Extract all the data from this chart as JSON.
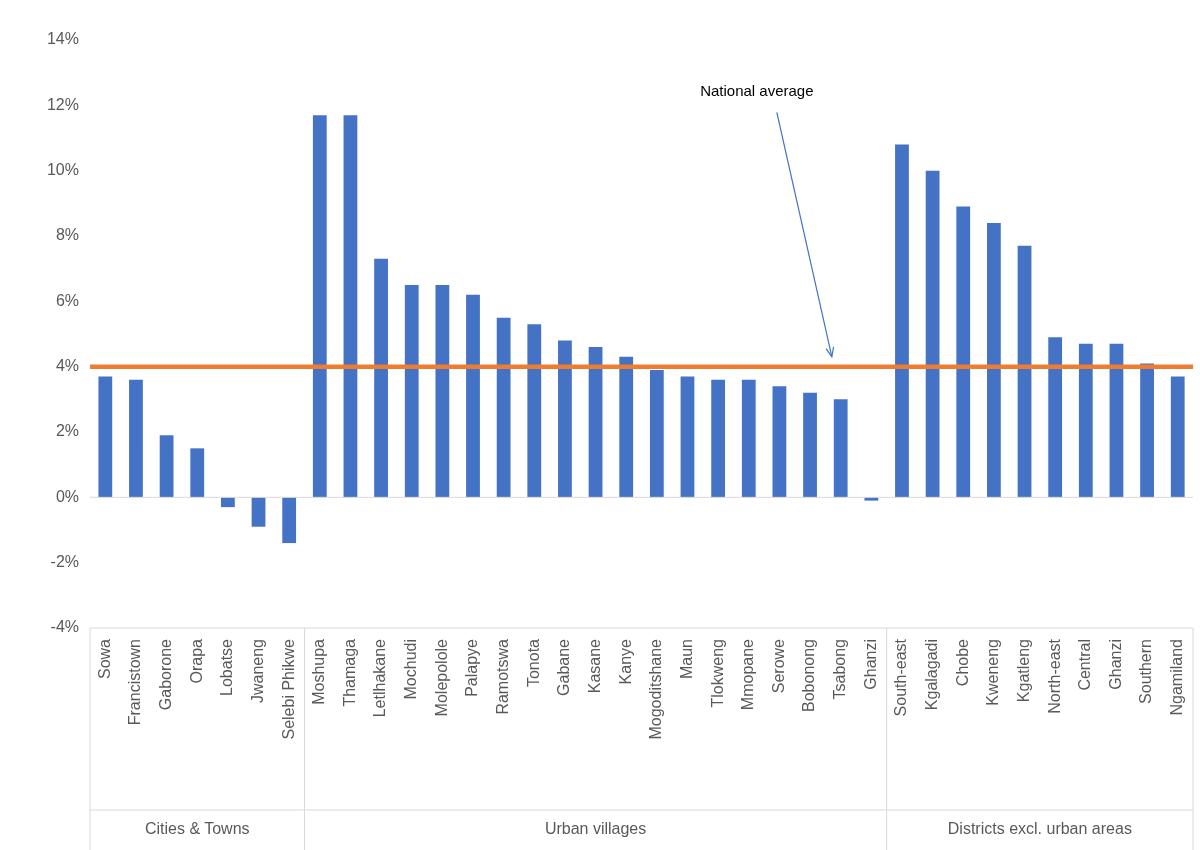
{
  "chart_data": {
    "type": "bar",
    "categories": [
      "Sowa",
      "Francistown",
      "Gaborone",
      "Orapa",
      "Lobatse",
      "Jwaneng",
      "Selebi Phikwe",
      "Moshupa",
      "Thamaga",
      "Letlhakane",
      "Mochudi",
      "Molepolole",
      "Palapye",
      "Ramotswa",
      "Tonota",
      "Gabane",
      "Kasane",
      "Kanye",
      "Mogoditshane",
      "Maun",
      "Tlokweng",
      "Mmopane",
      "Serowe",
      "Bobonong",
      "Tsabong",
      "Ghanzi",
      "South-east",
      "Kgalagadi",
      "Chobe",
      "Kweneng",
      "Kgatleng",
      "North-east",
      "Central",
      "Ghanzi",
      "Southern",
      "Ngamiland"
    ],
    "values": [
      3.7,
      3.6,
      1.9,
      1.5,
      -0.3,
      -0.9,
      -1.4,
      11.7,
      11.7,
      7.3,
      6.5,
      6.5,
      6.2,
      5.5,
      5.3,
      4.8,
      4.6,
      4.3,
      3.9,
      3.7,
      3.6,
      3.6,
      3.4,
      3.2,
      3.0,
      -0.1,
      10.8,
      10.0,
      8.9,
      8.4,
      7.7,
      4.9,
      4.7,
      4.7,
      4.1,
      3.7
    ],
    "color": "#4472c4",
    "ylim": [
      -4,
      14
    ],
    "yticks": [
      {
        "value": -4,
        "label": "-4%"
      },
      {
        "value": -2,
        "label": "-2%"
      },
      {
        "value": 0,
        "label": "0%"
      },
      {
        "value": 2,
        "label": "2%"
      },
      {
        "value": 4,
        "label": "4%"
      },
      {
        "value": 6,
        "label": "6%"
      },
      {
        "value": 8,
        "label": "8%"
      },
      {
        "value": 10,
        "label": "10%"
      },
      {
        "value": 12,
        "label": "12%"
      },
      {
        "value": 14,
        "label": "14%"
      }
    ],
    "grid": false,
    "legend": false,
    "ref_lines": [
      {
        "axis": "y",
        "value": 4,
        "label": "National average",
        "color": "#ed7d31"
      }
    ],
    "annotations": [
      "Cities & Towns",
      "Urban villages",
      "Districts excl. urban areas"
    ]
  }
}
